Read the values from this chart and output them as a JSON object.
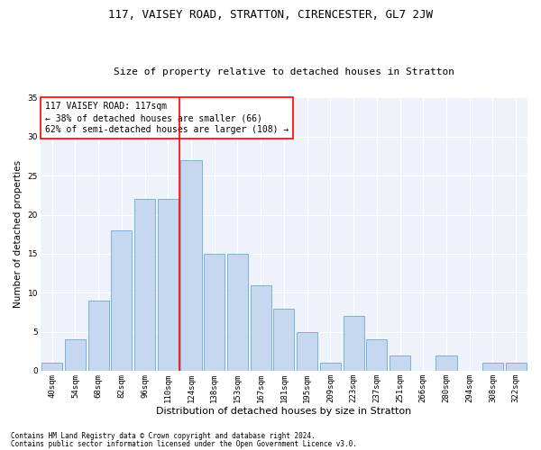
{
  "title1": "117, VAISEY ROAD, STRATTON, CIRENCESTER, GL7 2JW",
  "title2": "Size of property relative to detached houses in Stratton",
  "xlabel": "Distribution of detached houses by size in Stratton",
  "ylabel": "Number of detached properties",
  "bar_labels": [
    "40sqm",
    "54sqm",
    "68sqm",
    "82sqm",
    "96sqm",
    "110sqm",
    "124sqm",
    "138sqm",
    "153sqm",
    "167sqm",
    "181sqm",
    "195sqm",
    "209sqm",
    "223sqm",
    "237sqm",
    "251sqm",
    "266sqm",
    "280sqm",
    "294sqm",
    "308sqm",
    "322sqm"
  ],
  "bar_values": [
    1,
    4,
    9,
    18,
    22,
    22,
    27,
    15,
    15,
    11,
    8,
    5,
    1,
    7,
    4,
    2,
    0,
    2,
    0,
    1,
    1
  ],
  "bar_color": "#c5d8f0",
  "bar_edge_color": "#6aaad4",
  "bg_color": "#eef3fb",
  "grid_color": "#ffffff",
  "vline_color": "red",
  "vline_pos": 5.5,
  "annotation_text": "117 VAISEY ROAD: 117sqm\n← 38% of detached houses are smaller (66)\n62% of semi-detached houses are larger (108) →",
  "annotation_box_color": "white",
  "annotation_box_edge": "red",
  "footnote1": "Contains HM Land Registry data © Crown copyright and database right 2024.",
  "footnote2": "Contains public sector information licensed under the Open Government Licence v3.0.",
  "ylim": [
    0,
    35
  ],
  "yticks": [
    0,
    5,
    10,
    15,
    20,
    25,
    30,
    35
  ],
  "title1_fontsize": 9,
  "title2_fontsize": 8,
  "xlabel_fontsize": 8,
  "ylabel_fontsize": 7.5,
  "tick_fontsize": 6.5,
  "annotation_fontsize": 7,
  "footnote_fontsize": 5.5
}
